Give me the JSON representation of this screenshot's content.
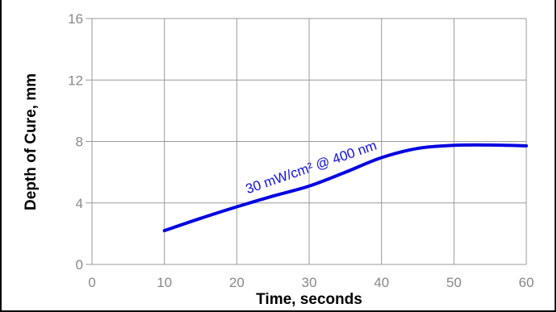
{
  "chart_data": {
    "type": "line",
    "title": "",
    "xlabel": "Time, seconds",
    "ylabel": "Depth of Cure, mm",
    "xlim": [
      0,
      60
    ],
    "ylim": [
      0,
      16
    ],
    "x_ticks": [
      0,
      10,
      20,
      30,
      40,
      50,
      60
    ],
    "y_ticks": [
      0,
      4,
      8,
      12,
      16
    ],
    "x_tick_labels": [
      "0",
      "10",
      "20",
      "30",
      "40",
      "50",
      "60"
    ],
    "y_tick_labels": [
      "0",
      "4",
      "8",
      "12",
      "16"
    ],
    "grid": true,
    "series": [
      {
        "name": "",
        "color": "#0000e0",
        "x": [
          10,
          15,
          20,
          25,
          30,
          35,
          40,
          45,
          50,
          55,
          60
        ],
        "y": [
          2.2,
          3.0,
          3.75,
          4.45,
          5.1,
          6.0,
          6.95,
          7.55,
          7.75,
          7.77,
          7.72
        ]
      }
    ],
    "annotations": [
      {
        "text": "30 mW/cm²  @ 400 nm",
        "x": 21.5,
        "y": 4.6,
        "color": "#1010dd"
      }
    ]
  }
}
